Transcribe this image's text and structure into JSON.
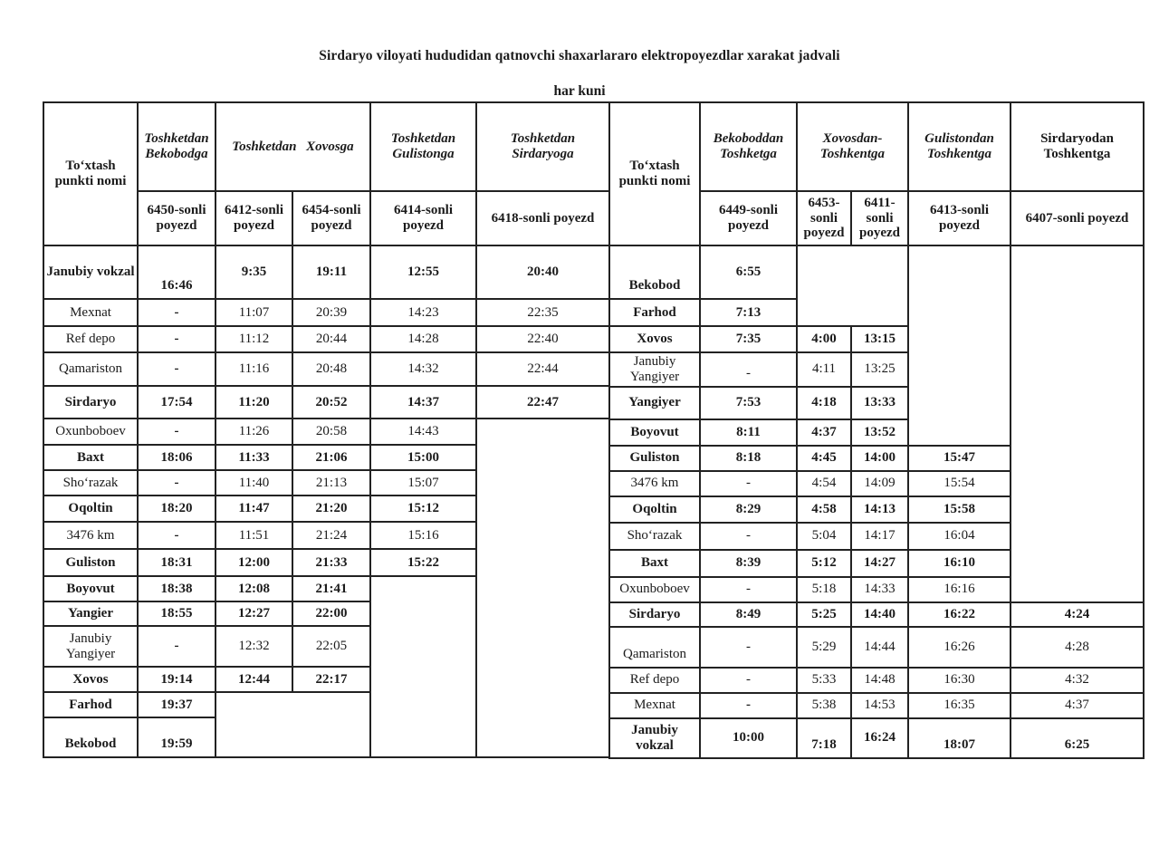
{
  "page": {
    "title": "Sirdaryo viloyati hududidan qatnovchi shaxarlararo elektropoyezdlar xarakat jadvali",
    "subtitle": "har kuni"
  },
  "left_table": {
    "stop_header": "To‘xtash punkti nomi",
    "groups": [
      {
        "label": "Toshketdan Bekobodga",
        "trains": [
          "6450-sonli poyezd"
        ]
      },
      {
        "label": "Toshketdan Xovosga",
        "trains": [
          "6412-sonli poyezd",
          "6454-sonli poyezd"
        ]
      },
      {
        "label": "Toshketdan Gulistonga",
        "trains": [
          "6414-sonli poyezd"
        ]
      },
      {
        "label": "Toshketdan Sirdaryoga",
        "trains": [
          "6418-sonli poyezd"
        ]
      }
    ],
    "rows": [
      {
        "station": "Janubiy vokzal",
        "bold": true,
        "cells": [
          {
            "t": "16:46",
            "va": "b"
          },
          "9:35",
          "19:11",
          "12:55",
          "20:40"
        ]
      },
      {
        "station": "Mexnat",
        "bold": false,
        "cells": [
          {
            "t": "-",
            "b": 1
          },
          "11:07",
          "20:39",
          "14:23",
          "22:35"
        ]
      },
      {
        "station": "Ref depo",
        "bold": false,
        "cells": [
          {
            "t": "-",
            "b": 1
          },
          "11:12",
          "20:44",
          "14:28",
          "22:40"
        ]
      },
      {
        "station": "Qamariston",
        "bold": false,
        "cells": [
          {
            "t": "-",
            "b": 1
          },
          "11:16",
          "20:48",
          "14:32",
          "22:44"
        ]
      },
      {
        "station": "Sirdaryo",
        "bold": true,
        "cells": [
          "17:54",
          "11:20",
          "20:52",
          "14:37",
          "22:47"
        ]
      },
      {
        "station": "Oxunboboev",
        "bold": false,
        "cells": [
          {
            "t": "-",
            "b": 1
          },
          "11:26",
          "20:58",
          "14:43",
          {
            "t": "",
            "rs": 12
          }
        ]
      },
      {
        "station": "Baxt",
        "bold": true,
        "cells": [
          "18:06",
          "11:33",
          "21:06",
          "15:00"
        ]
      },
      {
        "station": "Sho‘razak",
        "bold": false,
        "cells": [
          {
            "t": "-",
            "b": 1
          },
          "11:40",
          "21:13",
          "15:07"
        ]
      },
      {
        "station": "Oqoltin",
        "bold": true,
        "cells": [
          "18:20",
          "11:47",
          "21:20",
          "15:12"
        ]
      },
      {
        "station": "3476 km",
        "bold": false,
        "cells": [
          {
            "t": "-",
            "b": 1
          },
          "11:51",
          "21:24",
          "15:16"
        ]
      },
      {
        "station": "Guliston",
        "bold": true,
        "cells": [
          "18:31",
          "12:00",
          "21:33",
          "15:22"
        ]
      },
      {
        "station": "Boyovut",
        "bold": true,
        "cells": [
          "18:38",
          "12:08",
          "21:41",
          {
            "t": "",
            "rs": 6
          }
        ]
      },
      {
        "station": "Yangier",
        "bold": true,
        "cells": [
          "18:55",
          "12:27",
          "22:00"
        ]
      },
      {
        "station": "Janubiy Yangiyer",
        "bold": false,
        "cells": [
          {
            "t": "-",
            "b": 1
          },
          "12:32",
          "22:05"
        ]
      },
      {
        "station": "Xovos",
        "bold": true,
        "cells": [
          "19:14",
          "12:44",
          "22:17"
        ]
      },
      {
        "station": "Farhod",
        "bold": true,
        "cells": [
          "19:37",
          {
            "t": "",
            "cs": 2,
            "rs": 2
          }
        ]
      },
      {
        "station": "Bekobod",
        "bold": true,
        "sva": "b",
        "cells": [
          {
            "t": "19:59",
            "va": "b"
          }
        ]
      }
    ]
  },
  "right_table": {
    "stop_header": "To‘xtash punkti nomi",
    "groups": [
      {
        "label": "Bekoboddan Toshketga",
        "italic": true,
        "trains": [
          "6449-sonli poyezd"
        ]
      },
      {
        "label": "Xovosdan-Toshkentga",
        "italic": true,
        "trains": [
          "6453-sonli poyezd",
          "6411-sonli poyezd"
        ]
      },
      {
        "label": "Gulistondan Toshkentga",
        "italic": true,
        "trains": [
          "6413-sonli poyezd"
        ]
      },
      {
        "label": "Sirdaryodan Toshkentga",
        "italic": false,
        "trains": [
          "6407-sonli poyezd"
        ]
      }
    ],
    "rows": [
      {
        "station": "Bekobod",
        "bold": true,
        "sva": "b",
        "cells": [
          "6:55",
          {
            "t": "",
            "cs": 2,
            "rs": 2
          },
          {
            "t": "",
            "rs": 6
          },
          {
            "t": "",
            "rs": 12
          }
        ]
      },
      {
        "station": "Farhod",
        "bold": true,
        "cells": [
          "7:13"
        ]
      },
      {
        "station": "Xovos",
        "bold": true,
        "cells": [
          "7:35",
          "4:00",
          "13:15"
        ]
      },
      {
        "station": "Janubiy Yangiyer",
        "bold": false,
        "cells": [
          {
            "t": "-",
            "va": "b"
          },
          "4:11",
          "13:25"
        ]
      },
      {
        "station": "Yangiyer",
        "bold": true,
        "cells": [
          "7:53",
          "4:18",
          "13:33"
        ]
      },
      {
        "station": "Boyovut",
        "bold": true,
        "cells": [
          "8:11",
          "4:37",
          "13:52"
        ]
      },
      {
        "station": "Guliston",
        "bold": true,
        "cells": [
          "8:18",
          "4:45",
          "14:00",
          "15:47"
        ]
      },
      {
        "station": "3476 km",
        "bold": false,
        "cells": [
          "-",
          "4:54",
          "14:09",
          "15:54"
        ]
      },
      {
        "station": "Oqoltin",
        "bold": true,
        "cells": [
          "8:29",
          "4:58",
          "14:13",
          "15:58"
        ]
      },
      {
        "station": "Sho‘razak",
        "bold": false,
        "cells": [
          "-",
          "5:04",
          "14:17",
          "16:04"
        ]
      },
      {
        "station": "Baxt",
        "bold": true,
        "cells": [
          "8:39",
          "5:12",
          "14:27",
          "16:10"
        ]
      },
      {
        "station": "Oxunboboev",
        "bold": false,
        "cells": [
          "-",
          "5:18",
          "14:33",
          "16:16"
        ]
      },
      {
        "station": "Sirdaryo",
        "bold": true,
        "cells": [
          "8:49",
          "5:25",
          "14:40",
          "16:22",
          "4:24"
        ]
      },
      {
        "station": "Qamariston",
        "bold": false,
        "sva": "b",
        "cells": [
          "-",
          "5:29",
          "14:44",
          "16:26",
          "4:28"
        ]
      },
      {
        "station": "Ref depo",
        "bold": false,
        "cells": [
          "-",
          "5:33",
          "14:48",
          "16:30",
          "4:32"
        ]
      },
      {
        "station": "Mexnat",
        "bold": false,
        "cells": [
          {
            "t": "-",
            "b": 1
          },
          "5:38",
          "14:53",
          "16:35",
          "4:37"
        ]
      },
      {
        "station": "Janubiy vokzal",
        "bold": true,
        "cells": [
          "10:00",
          {
            "t": "7:18",
            "va": "b"
          },
          "16:24",
          {
            "t": "18:07",
            "va": "b"
          },
          {
            "t": "6:25",
            "va": "b"
          }
        ]
      }
    ]
  }
}
